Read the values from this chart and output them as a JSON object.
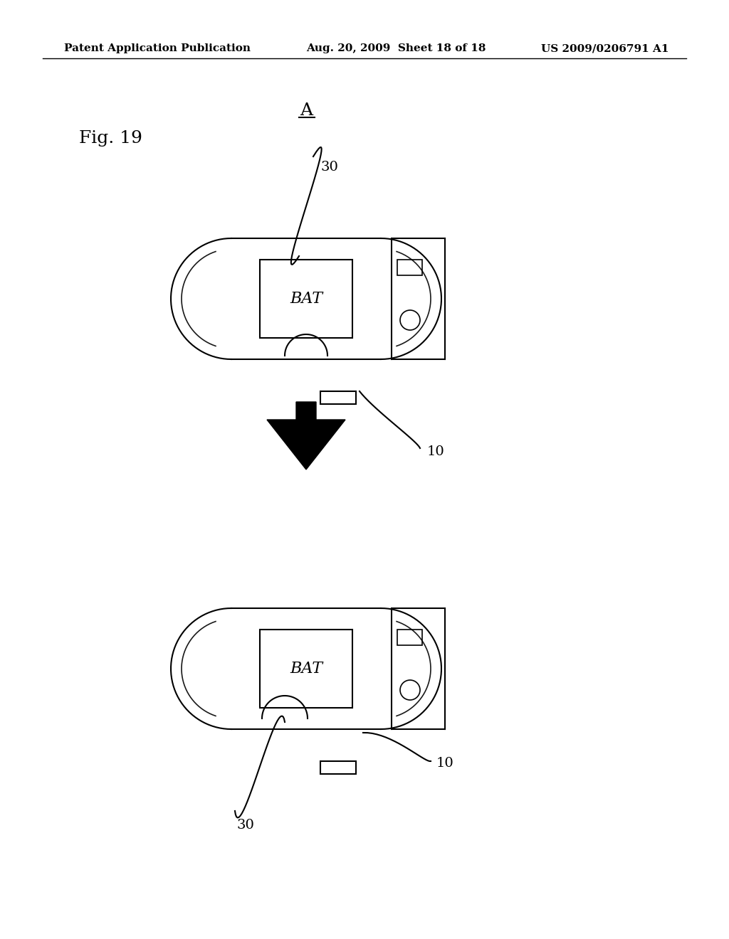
{
  "bg_color": "#ffffff",
  "header_left": "Patent Application Publication",
  "header_mid": "Aug. 20, 2009  Sheet 18 of 18",
  "header_right": "US 2009/0206791 A1",
  "fig_label": "Fig. 19",
  "label_A": "A",
  "label_30_top": "30",
  "label_10_top": "10",
  "label_30_bot": "30",
  "label_10_bot": "10",
  "bat_text": "BAT",
  "device_color": "#000000",
  "device_lw": 1.5
}
